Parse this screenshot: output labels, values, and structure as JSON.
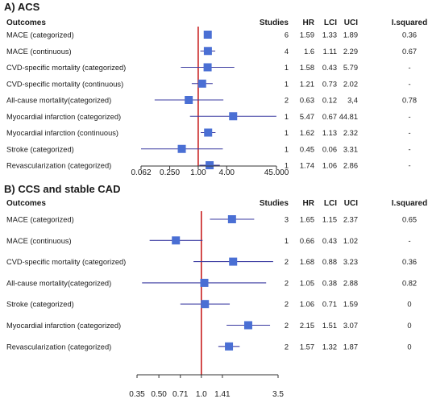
{
  "chart_data": [
    {
      "type": "forest",
      "title": "A) ACS",
      "headers": {
        "outcome": "Outcomes",
        "studies": "Studies",
        "hr": "HR",
        "lci": "LCI",
        "uci": "UCI",
        "i2": "I.squared"
      },
      "scale": "log",
      "xlim": [
        0.062,
        45.0
      ],
      "null_value": 1.0,
      "xticks": [
        0.062,
        0.25,
        1.0,
        4.0,
        45.0
      ],
      "xtick_labels": [
        "0.062",
        "0.250",
        "1.00",
        "4.00",
        "45.000"
      ],
      "marker_color": "#4a6fd4",
      "line_color": "#3a3aa0",
      "null_line_color": "#c00000",
      "rows": [
        {
          "outcome": "MACE (categorized)",
          "studies": "6",
          "hr": "1.59",
          "lci": "1.33",
          "uci": "1.89",
          "i2": "0.36"
        },
        {
          "outcome": "MACE (continuous)",
          "studies": "4",
          "hr": "1.6",
          "lci": "1.11",
          "uci": "2.29",
          "i2": "0.67"
        },
        {
          "outcome": "CVD-specific mortality (categorized)",
          "studies": "1",
          "hr": "1.58",
          "lci": "0.43",
          "uci": "5.79",
          "i2": "-"
        },
        {
          "outcome": "CVD-specific mortality (continuous)",
          "studies": "1",
          "hr": "1.21",
          "lci": "0.73",
          "uci": "2.02",
          "i2": "-"
        },
        {
          "outcome": "All-cause mortality(categorized)",
          "studies": "2",
          "hr": "0.63",
          "lci": "0.12",
          "uci": "3,4",
          "i2": "0.78"
        },
        {
          "outcome": "Myocardial infarction (categorized)",
          "studies": "1",
          "hr": "5.47",
          "lci": "0.67",
          "uci": "44.81",
          "i2": "-"
        },
        {
          "outcome": "Myocardial infarction (continuous)",
          "studies": "1",
          "hr": "1.62",
          "lci": "1.13",
          "uci": "2.32",
          "i2": "-"
        },
        {
          "outcome": "Stroke (categorized)",
          "studies": "1",
          "hr": "0.45",
          "lci": "0.06",
          "uci": "3.31",
          "i2": "-"
        },
        {
          "outcome": "Revascularization (categorized)",
          "studies": "1",
          "hr": "1.74",
          "lci": "1.06",
          "uci": "2.86",
          "i2": "-"
        }
      ]
    },
    {
      "type": "forest",
      "title": "B) CCS and stable CAD",
      "headers": {
        "outcome": "Outcomes",
        "studies": "Studies",
        "hr": "HR",
        "lci": "LCI",
        "uci": "UCI",
        "i2": "I.squared"
      },
      "scale": "log",
      "xlim": [
        0.35,
        3.5
      ],
      "null_value": 1.0,
      "xticks": [
        0.35,
        0.5,
        0.71,
        1.0,
        1.41,
        3.5
      ],
      "xtick_labels": [
        "0.35",
        "0.50",
        "0.71",
        "1.0",
        "1.41",
        "3.5"
      ],
      "marker_color": "#4a6fd4",
      "line_color": "#3a3aa0",
      "null_line_color": "#c00000",
      "rows": [
        {
          "outcome": "MACE (categorized)",
          "studies": "3",
          "hr": "1.65",
          "lci": "1.15",
          "uci": "2.37",
          "i2": "0.65"
        },
        {
          "outcome": "MACE (continuous)",
          "studies": "1",
          "hr": "0.66",
          "lci": "0.43",
          "uci": "1.02",
          "i2": "-"
        },
        {
          "outcome": "CVD-specific mortality (categorized)",
          "studies": "2",
          "hr": "1.68",
          "lci": "0.88",
          "uci": "3.23",
          "i2": "0.36"
        },
        {
          "outcome": "All-cause mortality(categorized)",
          "studies": "2",
          "hr": "1.05",
          "lci": "0.38",
          "uci": "2.88",
          "i2": "0.82"
        },
        {
          "outcome": "Stroke (categorized)",
          "studies": "2",
          "hr": "1.06",
          "lci": "0.71",
          "uci": "1.59",
          "i2": "0"
        },
        {
          "outcome": "Myocardial infarction (categorized)",
          "studies": "2",
          "hr": "2.15",
          "lci": "1.51",
          "uci": "3.07",
          "i2": "0"
        },
        {
          "outcome": "Revascularization (categorized)",
          "studies": "2",
          "hr": "1.57",
          "lci": "1.32",
          "uci": "1.87",
          "i2": "0"
        }
      ]
    }
  ]
}
